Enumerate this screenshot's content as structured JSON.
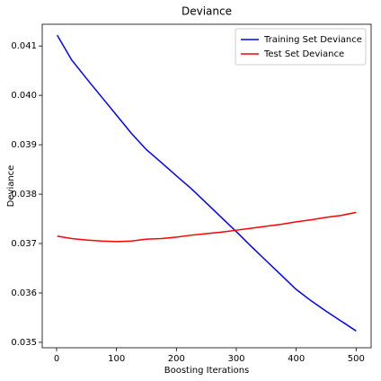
{
  "chart_data": {
    "type": "line",
    "title": "Deviance",
    "xlabel": "Boosting Iterations",
    "ylabel": "Deviance",
    "x": [
      1,
      25,
      50,
      75,
      100,
      125,
      150,
      175,
      200,
      225,
      250,
      275,
      300,
      325,
      350,
      375,
      400,
      425,
      450,
      475,
      500
    ],
    "series": [
      {
        "name": "Training Set Deviance",
        "color": "#0000ff",
        "values": [
          0.04122,
          0.04072,
          0.04034,
          0.03997,
          0.0396,
          0.03923,
          0.0389,
          0.03864,
          0.03837,
          0.03811,
          0.03782,
          0.03753,
          0.03724,
          0.03694,
          0.03665,
          0.03636,
          0.03607,
          0.03584,
          0.03563,
          0.03543,
          0.03523
        ]
      },
      {
        "name": "Test Set Deviance",
        "color": "#ff0000",
        "values": [
          0.03715,
          0.0371,
          0.03707,
          0.03705,
          0.03704,
          0.03705,
          0.03709,
          0.0371,
          0.03713,
          0.03717,
          0.0372,
          0.03723,
          0.03727,
          0.03731,
          0.03735,
          0.03739,
          0.03744,
          0.03748,
          0.03753,
          0.03757,
          0.03763
        ]
      }
    ],
    "xlim": [
      -24,
      525
    ],
    "xticks": [
      0,
      100,
      200,
      300,
      400,
      500
    ],
    "ylim": [
      0.03489,
      0.04144
    ],
    "yticks": [
      0.035,
      0.036,
      0.037,
      0.038,
      0.039,
      {
        "value": 0.04,
        "label": "0.040"
      },
      0.041
    ],
    "legend": "upper right"
  }
}
